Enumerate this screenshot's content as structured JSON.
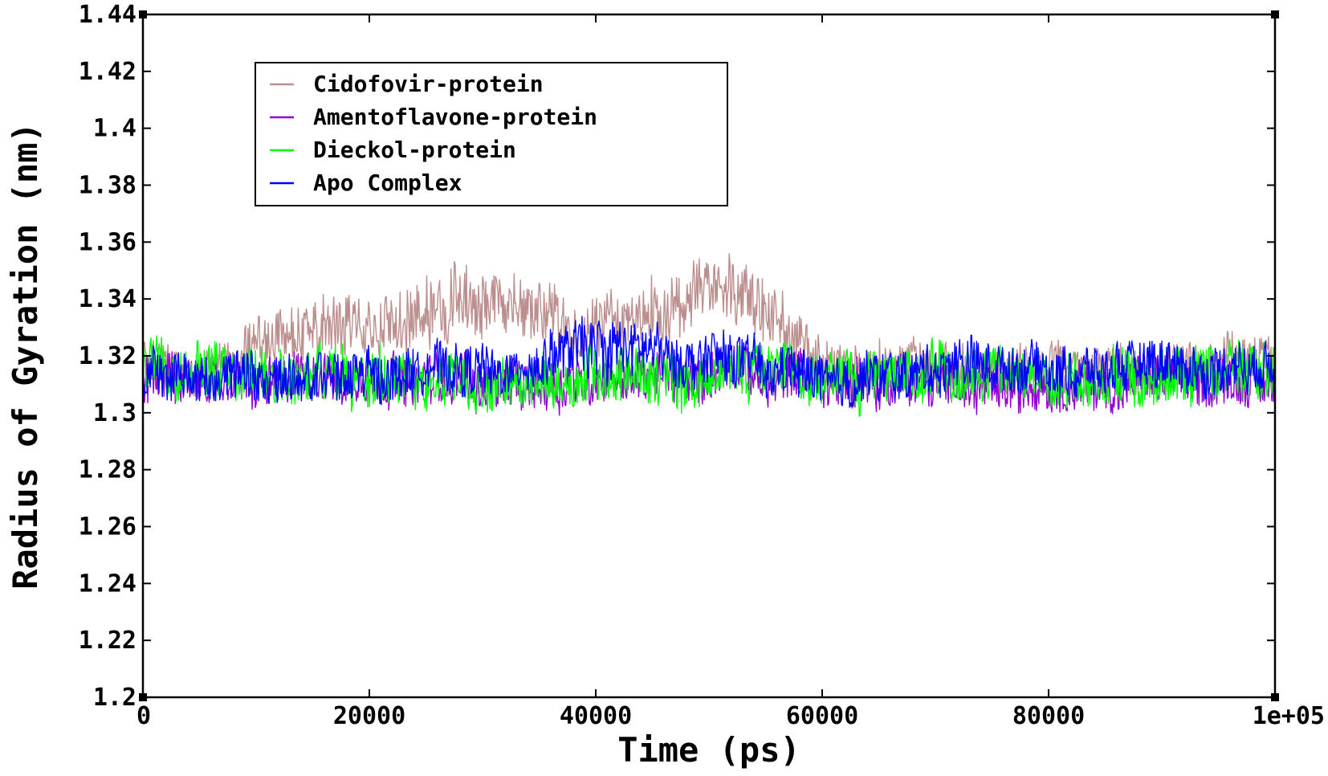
{
  "chart_data": {
    "type": "line",
    "title": "",
    "xlabel": "Time (ps)",
    "ylabel": "Radius of Gyration (nm)",
    "xlim": [
      0,
      100000
    ],
    "ylim": [
      1.2,
      1.44
    ],
    "x_ticks": [
      0,
      20000,
      40000,
      60000,
      80000,
      100000
    ],
    "x_tick_labels": [
      "0",
      "20000",
      "40000",
      "60000",
      "80000",
      "1e+05"
    ],
    "y_ticks": [
      1.2,
      1.22,
      1.24,
      1.26,
      1.28,
      1.3,
      1.32,
      1.34,
      1.36,
      1.38,
      1.4,
      1.42,
      1.44
    ],
    "y_tick_labels": [
      "1.2",
      "1.22",
      "1.24",
      "1.26",
      "1.28",
      "1.3",
      "1.32",
      "1.34",
      "1.36",
      "1.38",
      "1.4",
      "1.42",
      "1.44"
    ],
    "grid": false,
    "legend_position": "top-left",
    "x": [
      0,
      4000,
      8000,
      12000,
      16000,
      20000,
      24000,
      28000,
      32000,
      36000,
      40000,
      44000,
      48000,
      52000,
      56000,
      60000,
      64000,
      68000,
      72000,
      76000,
      80000,
      84000,
      88000,
      92000,
      96000,
      100000
    ],
    "series": [
      {
        "name": "Cidofovir-protein",
        "color": "#bc8f8f",
        "mean": [
          1.318,
          1.318,
          1.32,
          1.325,
          1.33,
          1.332,
          1.337,
          1.34,
          1.337,
          1.334,
          1.33,
          1.332,
          1.34,
          1.345,
          1.335,
          1.318,
          1.315,
          1.316,
          1.316,
          1.316,
          1.316,
          1.315,
          1.315,
          1.317,
          1.319,
          1.318
        ],
        "band": [
          0.009,
          0.009,
          0.009,
          0.011,
          0.013,
          0.011,
          0.014,
          0.014,
          0.012,
          0.012,
          0.011,
          0.011,
          0.013,
          0.013,
          0.012,
          0.009,
          0.009,
          0.009,
          0.009,
          0.009,
          0.009,
          0.009,
          0.009,
          0.009,
          0.009,
          0.009
        ]
      },
      {
        "name": "Amentoflavone-protein",
        "color": "#9400d3",
        "mean": [
          1.312,
          1.312,
          1.311,
          1.311,
          1.312,
          1.312,
          1.312,
          1.311,
          1.311,
          1.311,
          1.312,
          1.312,
          1.313,
          1.314,
          1.312,
          1.311,
          1.311,
          1.311,
          1.31,
          1.31,
          1.309,
          1.309,
          1.31,
          1.311,
          1.312,
          1.312
        ],
        "band": [
          0.01,
          0.01,
          0.01,
          0.01,
          0.01,
          0.01,
          0.01,
          0.01,
          0.01,
          0.01,
          0.01,
          0.01,
          0.01,
          0.01,
          0.01,
          0.01,
          0.01,
          0.01,
          0.01,
          0.01,
          0.01,
          0.01,
          0.01,
          0.01,
          0.01,
          0.01
        ]
      },
      {
        "name": "Dieckol-protein",
        "color": "#00ff00",
        "mean": [
          1.315,
          1.315,
          1.314,
          1.313,
          1.313,
          1.312,
          1.312,
          1.311,
          1.311,
          1.312,
          1.313,
          1.313,
          1.314,
          1.315,
          1.313,
          1.313,
          1.312,
          1.313,
          1.313,
          1.313,
          1.312,
          1.312,
          1.313,
          1.314,
          1.315,
          1.315
        ],
        "band": [
          0.011,
          0.011,
          0.011,
          0.011,
          0.011,
          0.011,
          0.011,
          0.011,
          0.011,
          0.011,
          0.011,
          0.011,
          0.011,
          0.011,
          0.011,
          0.011,
          0.011,
          0.011,
          0.011,
          0.011,
          0.011,
          0.011,
          0.011,
          0.011,
          0.011,
          0.011
        ]
      },
      {
        "name": "Apo Complex",
        "color": "#0000ff",
        "mean": [
          1.313,
          1.313,
          1.312,
          1.313,
          1.313,
          1.314,
          1.315,
          1.315,
          1.314,
          1.318,
          1.325,
          1.322,
          1.318,
          1.32,
          1.315,
          1.313,
          1.312,
          1.314,
          1.316,
          1.316,
          1.316,
          1.315,
          1.315,
          1.315,
          1.316,
          1.316
        ],
        "band": [
          0.01,
          0.01,
          0.01,
          0.01,
          0.01,
          0.01,
          0.01,
          0.01,
          0.01,
          0.011,
          0.012,
          0.011,
          0.01,
          0.01,
          0.01,
          0.01,
          0.01,
          0.01,
          0.01,
          0.01,
          0.01,
          0.01,
          0.01,
          0.01,
          0.01,
          0.01
        ]
      }
    ]
  }
}
